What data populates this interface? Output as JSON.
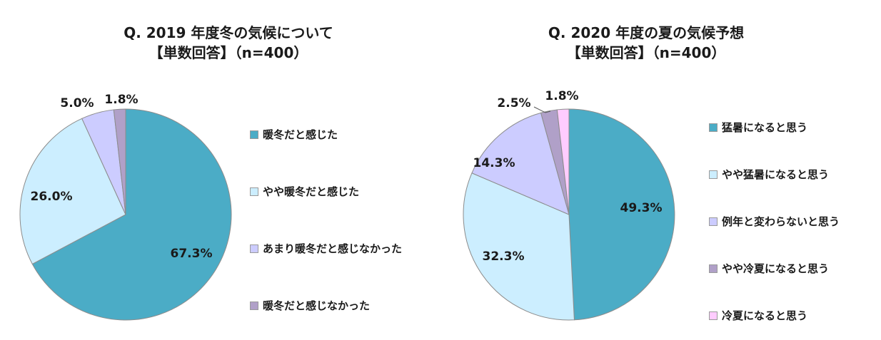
{
  "chart_data": [
    {
      "type": "pie",
      "title": "Q. 2019 年度冬の気候について",
      "subtitle": "【単数回答】（n=400）",
      "categories": [
        "暖冬だと感じた",
        "やや暖冬だと感じた",
        "あまり暖冬だと感じなかった",
        "暖冬だと感じなかった"
      ],
      "values": [
        67.3,
        26.0,
        5.0,
        1.8
      ],
      "labels": [
        "67.3%",
        "26.0%",
        "5.0%",
        "1.8%"
      ],
      "colors": [
        "#4BACC6",
        "#CCEEFF",
        "#CCCCFF",
        "#B0A0C8"
      ],
      "legend_position": "right"
    },
    {
      "type": "pie",
      "title": "Q. 2020 年度の夏の気候予想",
      "subtitle": "【単数回答】（n=400）",
      "categories": [
        "猛暑になると思う",
        "やや猛暑になると思う",
        "例年と変わらないと思う",
        "やや冷夏になると思う",
        "冷夏になると思う"
      ],
      "values": [
        49.3,
        32.3,
        14.3,
        2.5,
        1.8
      ],
      "labels": [
        "49.3%",
        "32.3%",
        "14.3%",
        "2.5%",
        "1.8%"
      ],
      "colors": [
        "#4BACC6",
        "#CCEEFF",
        "#CCCCFF",
        "#B0A0C8",
        "#FFCCFF"
      ],
      "legend_position": "right"
    }
  ]
}
